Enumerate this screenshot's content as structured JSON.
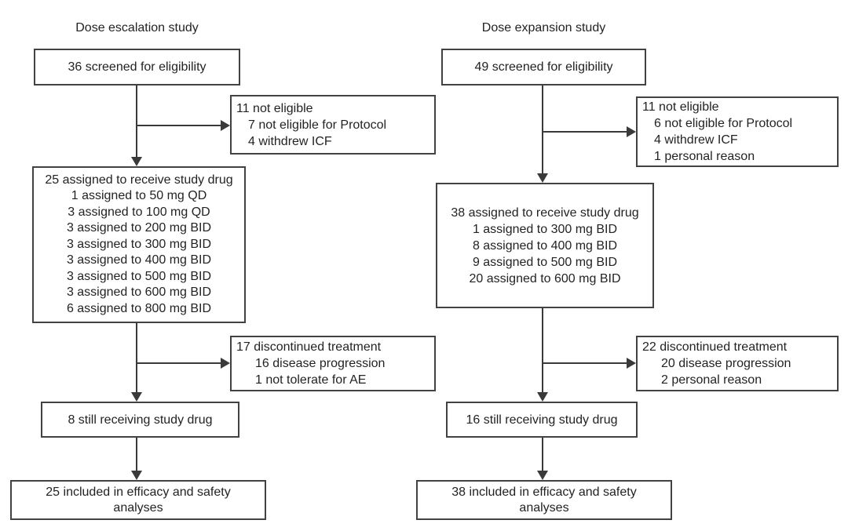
{
  "colors": {
    "box_border": "#424242",
    "line": "#3a3a3a",
    "text": "#232323",
    "background": "#ffffff"
  },
  "columns": [
    {
      "title": "Dose escalation study",
      "screened": "36 screened for eligibility",
      "not_eligible": {
        "total": "11 not eligible",
        "reasons": [
          "7 not eligible for Protocol",
          "4 withdrew ICF"
        ]
      },
      "assigned": {
        "total": "25 assigned to receive study drug",
        "doses": [
          "1 assigned to 50 mg QD",
          "3 assigned to 100 mg QD",
          "3 assigned to 200 mg BID",
          "3 assigned to 300 mg BID",
          "3 assigned to 400 mg BID",
          "3 assigned to 500 mg BID",
          "3 assigned to 600 mg BID",
          "6 assigned to 800 mg BID"
        ]
      },
      "discontinued": {
        "total": "17 discontinued treatment",
        "reasons": [
          "16 disease progression",
          "1 not tolerate for AE"
        ]
      },
      "still_receiving": "8 still receiving study drug",
      "included": "25 included in efficacy and safety analyses"
    },
    {
      "title": "Dose expansion study",
      "screened": "49 screened for eligibility",
      "not_eligible": {
        "total": "11 not eligible",
        "reasons": [
          "6 not eligible for Protocol",
          "4 withdrew ICF",
          "1 personal reason"
        ]
      },
      "assigned": {
        "total": "38 assigned to receive study drug",
        "doses": [
          "1 assigned to 300 mg BID",
          "8 assigned to 400 mg BID",
          "9 assigned to 500 mg BID",
          "20 assigned to 600 mg BID"
        ]
      },
      "discontinued": {
        "total": "22 discontinued treatment",
        "reasons": [
          "20 disease progression",
          "2 personal reason"
        ]
      },
      "still_receiving": "16 still receiving study drug",
      "included": "38 included in efficacy and safety analyses"
    }
  ]
}
